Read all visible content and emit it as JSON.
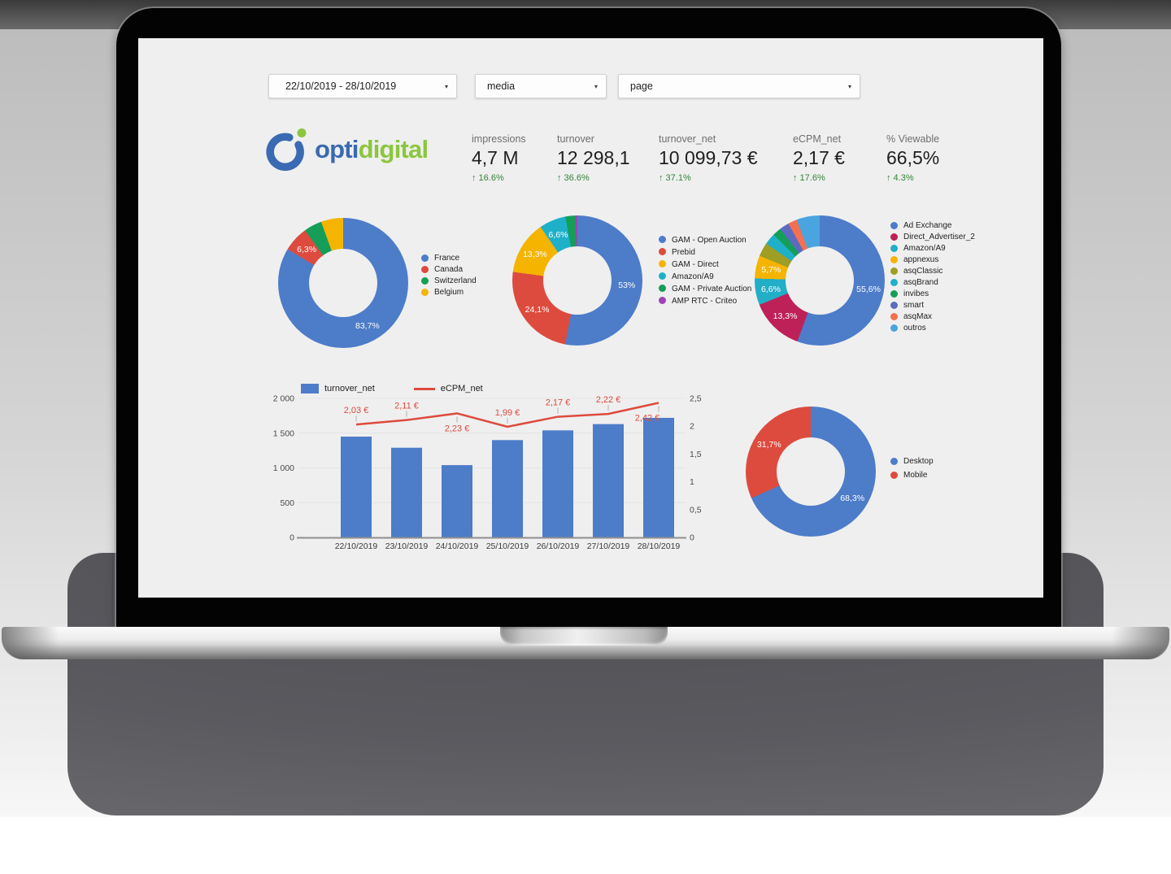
{
  "filters": {
    "date_range": "22/10/2019 - 28/10/2019",
    "media": "media",
    "page": "page",
    "caret": "▾"
  },
  "logo": {
    "part1": "opti",
    "part2": "digital"
  },
  "kpis": [
    {
      "label": "impressions",
      "value": "4,7 M",
      "delta": "↑ 16.6%"
    },
    {
      "label": "turnover",
      "value": "12 298,1",
      "delta": "↑ 36.6%"
    },
    {
      "label": "turnover_net",
      "value": "10 099,73 €",
      "delta": "↑ 37.1%"
    },
    {
      "label": "eCPM_net",
      "value": "2,17 €",
      "delta": "↑ 17.6%"
    },
    {
      "label": "% Viewable",
      "value": "66,5%",
      "delta": "↑ 4.3%"
    }
  ],
  "chart_data": [
    {
      "id": "traffic-by-country",
      "type": "pie",
      "legend_position": "right",
      "slices": [
        {
          "label": "France",
          "value": 83.7,
          "display": "83,7%",
          "color": "#4d7cc9"
        },
        {
          "label": "Canada",
          "value": 6.3,
          "display": "6,3%",
          "color": "#dd4b3e"
        },
        {
          "label": "Switzerland",
          "value": 4.5,
          "display": "",
          "color": "#159e58"
        },
        {
          "label": "Belgium",
          "value": 5.5,
          "display": "",
          "color": "#f5b400"
        }
      ]
    },
    {
      "id": "turnover-by-channel",
      "type": "pie",
      "legend_position": "right",
      "slices": [
        {
          "label": "GAM - Open Auction",
          "value": 53,
          "display": "53%",
          "color": "#4d7cc9"
        },
        {
          "label": "Prebid",
          "value": 24.1,
          "display": "24,1%",
          "color": "#dd4b3e"
        },
        {
          "label": "GAM - Direct",
          "value": 13.3,
          "display": "13,3%",
          "color": "#f5b400"
        },
        {
          "label": "Amazon/A9",
          "value": 6.6,
          "display": "6,6%",
          "color": "#1fb0c9"
        },
        {
          "label": "GAM - Private Auction",
          "value": 2.5,
          "display": "",
          "color": "#159e58"
        },
        {
          "label": "AMP RTC - Criteo",
          "value": 0.5,
          "display": "",
          "color": "#a142b8"
        }
      ]
    },
    {
      "id": "turnover-by-demand",
      "type": "pie",
      "legend_position": "right",
      "slices": [
        {
          "label": "Ad Exchange",
          "value": 55.6,
          "display": "55,6%",
          "color": "#4d7cc9"
        },
        {
          "label": "Direct_Advertiser_2",
          "value": 13.3,
          "display": "13,3%",
          "color": "#bd2158"
        },
        {
          "label": "Amazon/A9",
          "value": 6.6,
          "display": "6,6%",
          "color": "#22aec6"
        },
        {
          "label": "appnexus",
          "value": 5.7,
          "display": "5,7%",
          "color": "#f5b400"
        },
        {
          "label": "asqClassic",
          "value": 3.4,
          "display": "",
          "color": "#9e9d24"
        },
        {
          "label": "asqBrand",
          "value": 2.9,
          "display": "",
          "color": "#1fb0c9"
        },
        {
          "label": "invibes",
          "value": 2.1,
          "display": "",
          "color": "#159e58"
        },
        {
          "label": "smart",
          "value": 2.4,
          "display": "",
          "color": "#5c6bc0"
        },
        {
          "label": "asqMax",
          "value": 2.2,
          "display": "",
          "color": "#f4704f"
        },
        {
          "label": "outros",
          "value": 5.8,
          "display": "",
          "color": "#49a4e0"
        }
      ]
    },
    {
      "id": "turnover-ecpm-by-day",
      "type": "bar",
      "categories": [
        "22/10/2019",
        "23/10/2019",
        "24/10/2019",
        "25/10/2019",
        "26/10/2019",
        "27/10/2019",
        "28/10/2019"
      ],
      "series": [
        {
          "name": "turnover_net",
          "type": "bar",
          "color": "#4d7cc9",
          "values": [
            1450,
            1290,
            1040,
            1400,
            1540,
            1630,
            1720
          ]
        },
        {
          "name": "eCPM_net",
          "type": "line",
          "color": "#dd4b3e",
          "values": [
            2.03,
            2.11,
            2.23,
            1.99,
            2.17,
            2.22,
            2.42
          ],
          "point_labels": [
            "2,03 €",
            "2,11 €",
            "2,23 €",
            "1,99 €",
            "2,17 €",
            "2,22 €",
            "2,42 €"
          ],
          "label_side": [
            "above",
            "above",
            "below",
            "above",
            "above",
            "above",
            "below"
          ]
        }
      ],
      "left_axis": {
        "ticks": [
          0,
          500,
          1000,
          1500,
          2000
        ],
        "tick_labels": [
          "0",
          "500",
          "1 000",
          "1 500",
          "2 000"
        ],
        "max": 2000
      },
      "right_axis": {
        "ticks": [
          0,
          0.5,
          1,
          1.5,
          2,
          2.5
        ],
        "tick_labels": [
          "0",
          "0,5",
          "1",
          "1,5",
          "2",
          "2,5"
        ],
        "max": 2.5
      },
      "grid": true,
      "legend_position": "top"
    },
    {
      "id": "traffic-by-device",
      "type": "pie",
      "legend_position": "right",
      "slices": [
        {
          "label": "Desktop",
          "value": 68.3,
          "display": "68,3%",
          "color": "#4d7cc9"
        },
        {
          "label": "Mobile",
          "value": 31.7,
          "display": "31,7%",
          "color": "#dd4b3e"
        }
      ]
    }
  ]
}
